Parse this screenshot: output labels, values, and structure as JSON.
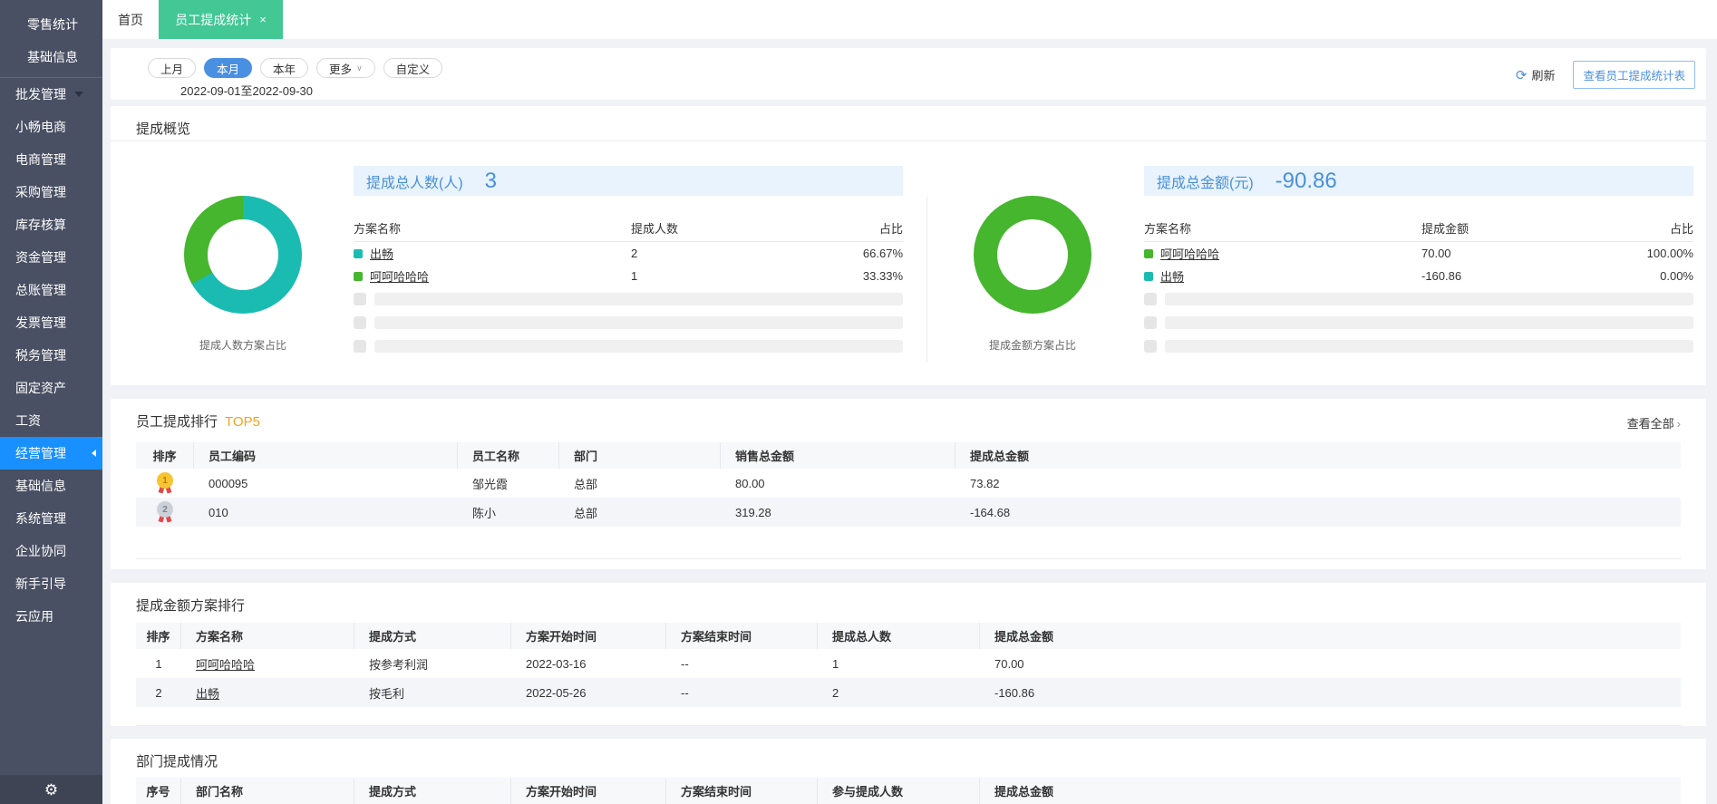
{
  "colors": {
    "sidebar_bg": "#495063",
    "active_blue": "#1890ff",
    "tab_green": "#42c795",
    "pill_blue": "#4a90e2",
    "stat_blue": "#4a90d9",
    "banner_bg": "#e8f3fd",
    "top5_orange": "#f5a31a",
    "teal": "#1abcb2",
    "green": "#45b62e"
  },
  "sidebar": {
    "top_items": [
      "零售统计",
      "基础信息"
    ],
    "items": [
      "批发管理",
      "小畅电商",
      "电商管理",
      "采购管理",
      "库存核算",
      "资金管理",
      "总账管理",
      "发票管理",
      "税务管理",
      "固定资产",
      "工资",
      "经营管理",
      "基础信息",
      "系统管理",
      "企业协同",
      "新手引导",
      "云应用"
    ],
    "gear_icon": "⚙"
  },
  "tabs": {
    "home": "首页",
    "active": "员工提成统计",
    "close_icon": "×"
  },
  "filters": {
    "pills": [
      "上月",
      "本月",
      "本年",
      "更多",
      "自定义"
    ],
    "more_arrow": "∨",
    "date_range": "2022-09-01至2022-09-30",
    "refresh_icon": "⟳",
    "refresh_label": "刷新",
    "view_report_button": "查看员工提成统计表"
  },
  "overview": {
    "title": "提成概览",
    "left": {
      "stat_label": "提成总人数(人)",
      "stat_value": "3",
      "columns": [
        "方案名称",
        "提成人数",
        "占比"
      ],
      "rows": [
        {
          "name": "出畅",
          "color": "#1abcb2",
          "value": "2",
          "percent": "66.67%"
        },
        {
          "name": "呵呵哈哈哈",
          "color": "#45b62e",
          "value": "1",
          "percent": "33.33%"
        }
      ],
      "caption": "提成人数方案占比",
      "donut": {
        "type": "pie",
        "segments": [
          {
            "name": "出畅",
            "color": "#1abcb2",
            "percent": 66.67
          },
          {
            "name": "呵呵哈哈哈",
            "color": "#45b62e",
            "percent": 33.33
          }
        ]
      }
    },
    "right": {
      "stat_label": "提成总金额(元)",
      "stat_value": "-90.86",
      "columns": [
        "方案名称",
        "提成金额",
        "占比"
      ],
      "rows": [
        {
          "name": "呵呵哈哈哈",
          "color": "#45b62e",
          "value": "70.00",
          "percent": "100.00%"
        },
        {
          "name": "出畅",
          "color": "#1abcb2",
          "value": "-160.86",
          "percent": "0.00%"
        }
      ],
      "caption": "提成金额方案占比",
      "donut": {
        "type": "pie",
        "segments": [
          {
            "name": "呵呵哈哈哈",
            "color": "#45b62e",
            "percent": 100
          },
          {
            "name": "出畅",
            "color": "#1abcb2",
            "percent": 0
          }
        ]
      }
    }
  },
  "employee_rank": {
    "title": "员工提成排行",
    "badge": "TOP5",
    "view_all": "查看全部",
    "view_all_arrow": "›",
    "columns": [
      "排序",
      "员工编码",
      "员工名称",
      "部门",
      "销售总金额",
      "提成总金额"
    ],
    "rows": [
      {
        "rank": "1",
        "medal": "gold",
        "code": "000095",
        "name": "邹光霞",
        "dept": "总部",
        "sales": "80.00",
        "commission": "73.82"
      },
      {
        "rank": "2",
        "medal": "silver",
        "code": "010",
        "name": "陈小",
        "dept": "总部",
        "sales": "319.28",
        "commission": "-164.68"
      }
    ]
  },
  "plan_rank": {
    "title": "提成金额方案排行",
    "columns": [
      "排序",
      "方案名称",
      "提成方式",
      "方案开始时间",
      "方案结束时间",
      "提成总人数",
      "提成总金额"
    ],
    "rows": [
      {
        "seq": "1",
        "name": "呵呵哈哈哈",
        "method": "按参考利润",
        "start": "2022-03-16",
        "end": "--",
        "people": "1",
        "amount": "70.00"
      },
      {
        "seq": "2",
        "name": "出畅",
        "method": "按毛利",
        "start": "2022-05-26",
        "end": "--",
        "people": "2",
        "amount": "-160.86"
      }
    ]
  },
  "dept_section": {
    "title": "部门提成情况",
    "columns": [
      "序号",
      "部门名称",
      "提成方式",
      "方案开始时间",
      "方案结束时间",
      "参与提成人数",
      "提成总金额"
    ]
  }
}
